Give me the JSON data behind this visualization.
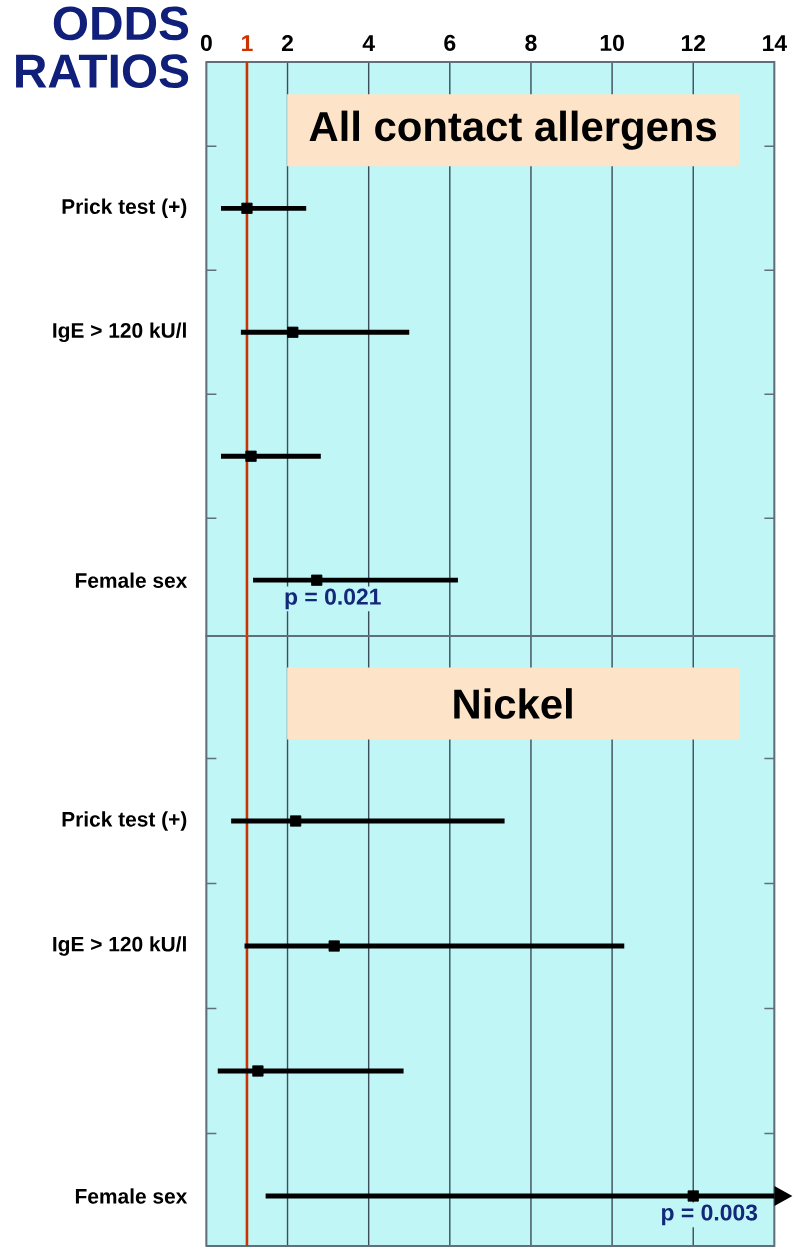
{
  "chart_data": [
    {
      "type": "scatter",
      "orientation": "horizontal",
      "title": "All contact allergens",
      "xlabel": "ODDS RATIOS",
      "categories": [
        "Prick test (+)",
        "IgE > 120 kU/l",
        null,
        "Female sex"
      ],
      "series": [
        {
          "color": "#000000",
          "values": [
            1.0,
            2.13,
            1.1,
            2.72
          ],
          "errors": [
            [
              0.36,
              2.46
            ],
            [
              0.85,
              5.0
            ],
            [
              0.36,
              2.82
            ],
            [
              1.15,
              6.2
            ]
          ]
        }
      ],
      "xlim": [
        0,
        14
      ],
      "xticks": [
        0,
        1,
        2,
        4,
        6,
        8,
        10,
        12,
        14
      ],
      "grid": "x",
      "marker": "square",
      "ref_lines": [
        {
          "axis": "x",
          "value": 1,
          "color": "#cc3300"
        }
      ],
      "annotations": [
        {
          "text": "p = 0.021",
          "x": 2.72,
          "y": "Female sex"
        }
      ]
    },
    {
      "type": "scatter",
      "orientation": "horizontal",
      "title": "Nickel",
      "categories": [
        "Prick test (+)",
        "IgE > 120 kU/l",
        null,
        "Female sex"
      ],
      "series": [
        {
          "color": "#000000",
          "values": [
            2.2,
            3.15,
            1.27,
            12.0
          ],
          "errors": [
            [
              0.61,
              7.35
            ],
            [
              0.94,
              10.3
            ],
            [
              0.28,
              4.86
            ],
            [
              1.46,
              14
            ]
          ]
        }
      ],
      "xlim": [
        0,
        14
      ],
      "xticks": [
        0,
        1,
        2,
        4,
        6,
        8,
        10,
        12,
        14
      ],
      "grid": "x",
      "marker": "square",
      "tick_labels": "y",
      "ref_lines": [
        {
          "axis": "x",
          "value": 1,
          "color": "#cc3300"
        }
      ],
      "annotations": [
        {
          "text": "p = 0.003",
          "x": 12.0,
          "y": "Female sex"
        }
      ]
    }
  ]
}
